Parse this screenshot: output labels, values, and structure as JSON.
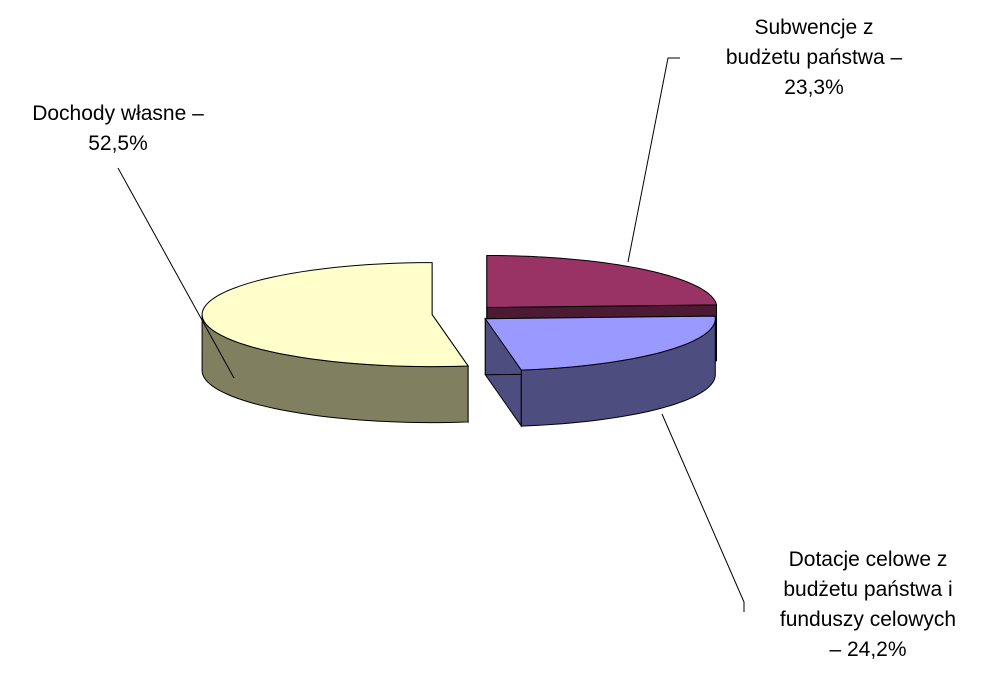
{
  "chart_data": {
    "type": "pie",
    "style": "3d-exploded",
    "title": "",
    "categories": [
      "Dochody własne",
      "Subwencje z budżetu państwa",
      "Dotacje celowe z budżetu państwa i funduszy celowych"
    ],
    "values": [
      52.5,
      23.3,
      24.2
    ],
    "unit": "%",
    "colors": [
      "#FFFFCC",
      "#9999FF",
      "#993366"
    ],
    "side_colors": [
      "#808060",
      "#4D4D80",
      "#4D1A33"
    ],
    "data_labels": [
      [
        "Dochody własne –",
        "52,5%"
      ],
      [
        "Subwencje z",
        "budżetu państwa –",
        "23,3%"
      ],
      [
        "Dotacje celowe z",
        "budżetu państwa i",
        "funduszy celowych",
        "– 24,2%"
      ]
    ],
    "legend": "none"
  }
}
